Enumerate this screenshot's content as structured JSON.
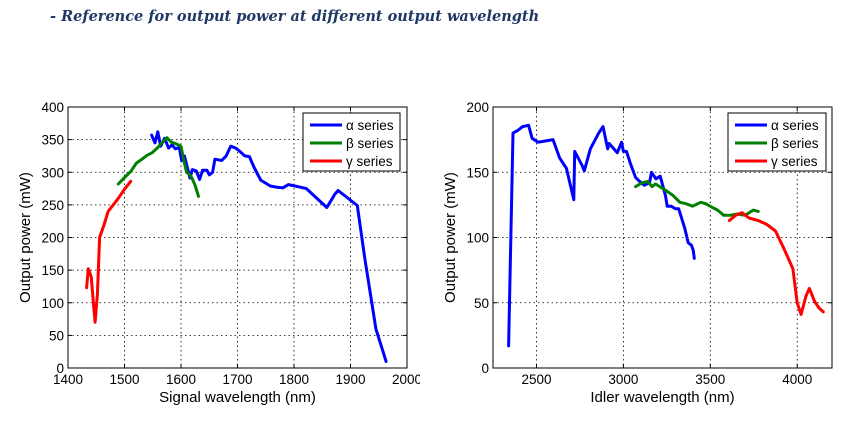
{
  "page": {
    "heading": "- Reference for output power at different output wavelength"
  },
  "chart_data": [
    {
      "type": "line",
      "title": "",
      "xlabel": "Signal wavelength (nm)",
      "ylabel": "Output power (mW)",
      "xlim": [
        1400,
        2000
      ],
      "ylim": [
        0,
        400
      ],
      "xticks": [
        1400,
        1500,
        1600,
        1700,
        1800,
        1900,
        2000
      ],
      "yticks": [
        0,
        50,
        100,
        150,
        200,
        250,
        300,
        350,
        400
      ],
      "grid": true,
      "legend_position": "top-right",
      "series": [
        {
          "name": "α series",
          "color": "#0000ff",
          "points": [
            [
              1548,
              357
            ],
            [
              1554,
              345
            ],
            [
              1559,
              362
            ],
            [
              1564,
              340
            ],
            [
              1571,
              352
            ],
            [
              1578,
              337
            ],
            [
              1584,
              342
            ],
            [
              1590,
              336
            ],
            [
              1597,
              338
            ],
            [
              1601,
              318
            ],
            [
              1606,
              325
            ],
            [
              1611,
              308
            ],
            [
              1616,
              291
            ],
            [
              1620,
              304
            ],
            [
              1627,
              302
            ],
            [
              1633,
              289
            ],
            [
              1638,
              303
            ],
            [
              1646,
              303
            ],
            [
              1650,
              296
            ],
            [
              1656,
              300
            ],
            [
              1660,
              320
            ],
            [
              1672,
              318
            ],
            [
              1680,
              325
            ],
            [
              1688,
              340
            ],
            [
              1697,
              337
            ],
            [
              1704,
              332
            ],
            [
              1713,
              325
            ],
            [
              1721,
              324
            ],
            [
              1729,
              308
            ],
            [
              1741,
              288
            ],
            [
              1758,
              279
            ],
            [
              1770,
              277
            ],
            [
              1780,
              276
            ],
            [
              1790,
              281
            ],
            [
              1802,
              279
            ],
            [
              1822,
              275
            ],
            [
              1858,
              246
            ],
            [
              1868,
              260
            ],
            [
              1872,
              266
            ],
            [
              1878,
              272
            ],
            [
              1912,
              249
            ],
            [
              1925,
              170
            ],
            [
              1945,
              60
            ],
            [
              1963,
              10
            ]
          ]
        },
        {
          "name": "β series",
          "color": "#008000",
          "points": [
            [
              1489,
              282
            ],
            [
              1500,
              292
            ],
            [
              1511,
              301
            ],
            [
              1521,
              314
            ],
            [
              1531,
              320
            ],
            [
              1540,
              326
            ],
            [
              1549,
              330
            ],
            [
              1559,
              338
            ],
            [
              1567,
              346
            ],
            [
              1575,
              353
            ],
            [
              1583,
              346
            ],
            [
              1590,
              344
            ],
            [
              1600,
              340
            ],
            [
              1605,
              318
            ],
            [
              1610,
              300
            ],
            [
              1616,
              296
            ],
            [
              1620,
              290
            ],
            [
              1625,
              280
            ],
            [
              1631,
              263
            ]
          ]
        },
        {
          "name": "γ series",
          "color": "#ff0000",
          "points": [
            [
              1433,
              123
            ],
            [
              1436,
              152
            ],
            [
              1441,
              140
            ],
            [
              1445,
              100
            ],
            [
              1448,
              70
            ],
            [
              1452,
              113
            ],
            [
              1456,
              200
            ],
            [
              1464,
              220
            ],
            [
              1471,
              240
            ],
            [
              1481,
              251
            ],
            [
              1489,
              260
            ],
            [
              1500,
              274
            ],
            [
              1511,
              286
            ]
          ]
        }
      ]
    },
    {
      "type": "line",
      "title": "",
      "xlabel": "Idler wavelength (nm)",
      "ylabel": "Output power (mW)",
      "xlim": [
        2250,
        4200
      ],
      "ylim": [
        0,
        200
      ],
      "xticks": [
        2500,
        3000,
        3500,
        4000
      ],
      "yticks": [
        0,
        50,
        100,
        150,
        200
      ],
      "grid": true,
      "legend_position": "top-right",
      "series": [
        {
          "name": "α series",
          "color": "#0000ff",
          "points": [
            [
              2340,
              17
            ],
            [
              2365,
              180
            ],
            [
              2392,
              182
            ],
            [
              2420,
              185
            ],
            [
              2455,
              186
            ],
            [
              2475,
              176
            ],
            [
              2510,
              173
            ],
            [
              2555,
              174
            ],
            [
              2595,
              175
            ],
            [
              2633,
              161
            ],
            [
              2672,
              153
            ],
            [
              2715,
              129
            ],
            [
              2720,
              166
            ],
            [
              2763,
              155
            ],
            [
              2775,
              151
            ],
            [
              2810,
              168
            ],
            [
              2858,
              180
            ],
            [
              2883,
              185
            ],
            [
              2910,
              168
            ],
            [
              2918,
              172
            ],
            [
              2945,
              168
            ],
            [
              2965,
              165
            ],
            [
              2990,
              173
            ],
            [
              3000,
              166
            ],
            [
              3018,
              166
            ],
            [
              3042,
              156
            ],
            [
              3070,
              146
            ],
            [
              3085,
              144
            ],
            [
              3120,
              140
            ],
            [
              3150,
              142
            ],
            [
              3162,
              150
            ],
            [
              3187,
              145
            ],
            [
              3212,
              147
            ],
            [
              3242,
              132
            ],
            [
              3252,
              124
            ],
            [
              3275,
              124
            ],
            [
              3300,
              122
            ],
            [
              3318,
              122
            ],
            [
              3353,
              107
            ],
            [
              3373,
              96
            ],
            [
              3392,
              94
            ],
            [
              3402,
              90
            ],
            [
              3408,
              84
            ]
          ]
        },
        {
          "name": "β series",
          "color": "#008000",
          "points": [
            [
              3070,
              139
            ],
            [
              3108,
              142
            ],
            [
              3140,
              143
            ],
            [
              3165,
              139
            ],
            [
              3185,
              141
            ],
            [
              3245,
              136
            ],
            [
              3287,
              132
            ],
            [
              3325,
              127
            ],
            [
              3358,
              126
            ],
            [
              3398,
              124
            ],
            [
              3445,
              127
            ],
            [
              3472,
              126
            ],
            [
              3512,
              123
            ],
            [
              3542,
              121
            ],
            [
              3577,
              117
            ],
            [
              3612,
              117
            ],
            [
              3655,
              118
            ],
            [
              3700,
              117
            ],
            [
              3747,
              121
            ],
            [
              3776,
              120
            ]
          ]
        },
        {
          "name": "γ series",
          "color": "#ff0000",
          "points": [
            [
              3610,
              113
            ],
            [
              3645,
              117
            ],
            [
              3683,
              119
            ],
            [
              3722,
              115
            ],
            [
              3775,
              113
            ],
            [
              3825,
              110
            ],
            [
              3875,
              105
            ],
            [
              3925,
              91
            ],
            [
              3975,
              76
            ],
            [
              4000,
              50
            ],
            [
              4022,
              41
            ],
            [
              4050,
              55
            ],
            [
              4070,
              61
            ],
            [
              4100,
              51
            ],
            [
              4125,
              46
            ],
            [
              4150,
              43
            ]
          ]
        }
      ]
    }
  ]
}
